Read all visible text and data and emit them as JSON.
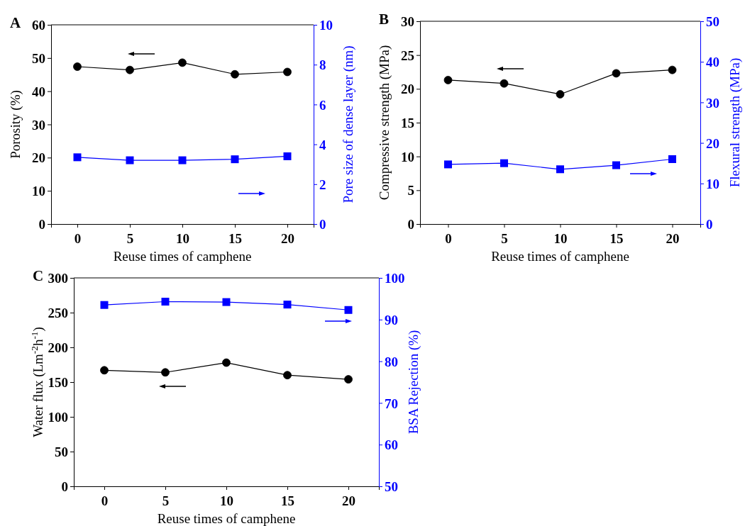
{
  "chart_data": [
    {
      "type": "line",
      "title": "A",
      "xlabel": "Reuse times of camphene",
      "ylabel": "Porosity (%)",
      "y2label": "Pore size of dense layer (nm)",
      "x": [
        0,
        5,
        10,
        15,
        20
      ],
      "xlim": [
        -2.5,
        22.5
      ],
      "xticks": [
        0,
        5,
        10,
        15,
        20
      ],
      "ylim": [
        0,
        60
      ],
      "yticks": [
        0,
        10,
        20,
        30,
        40,
        50,
        60
      ],
      "y2lim": [
        0,
        10
      ],
      "y2ticks": [
        0,
        2,
        4,
        6,
        8,
        10
      ],
      "series": [
        {
          "color": "#000000",
          "marker": "circle",
          "values": [
            47.4,
            46.4,
            48.6,
            45.1,
            45.8
          ]
        },
        {
          "color": "#0000ff",
          "marker": "square",
          "axis": "y2",
          "values": [
            3.35,
            3.2,
            3.2,
            3.25,
            3.4
          ]
        }
      ]
    },
    {
      "type": "line",
      "title": "B",
      "xlabel": "Reuse times of camphene",
      "ylabel": "Compressive strength (MPa)",
      "y2label": "Flexural strength (MPa)",
      "x": [
        0,
        5,
        10,
        15,
        20
      ],
      "xlim": [
        -2.5,
        22.5
      ],
      "xticks": [
        0,
        5,
        10,
        15,
        20
      ],
      "ylim": [
        0,
        30
      ],
      "yticks": [
        0,
        5,
        10,
        15,
        20,
        25,
        30
      ],
      "y2lim": [
        0,
        50
      ],
      "y2ticks": [
        0,
        10,
        20,
        30,
        40,
        50
      ],
      "series": [
        {
          "color": "#000000",
          "marker": "circle",
          "values": [
            21.3,
            20.8,
            19.2,
            22.3,
            22.8
          ]
        },
        {
          "color": "#0000ff",
          "marker": "square",
          "axis": "y2",
          "values": [
            14.7,
            15.0,
            13.5,
            14.5,
            16.0
          ]
        }
      ]
    },
    {
      "type": "line",
      "title": "C",
      "xlabel": "Reuse times of camphene",
      "ylabel": "Water flux (Lm$^{-2}$h$^{-1}$)",
      "y2label": "BSA Rejection (%)",
      "x": [
        0,
        5,
        10,
        15,
        20
      ],
      "xlim": [
        -2.5,
        22.5
      ],
      "xticks": [
        0,
        5,
        10,
        15,
        20
      ],
      "ylim": [
        0,
        300
      ],
      "yticks": [
        0,
        50,
        100,
        150,
        200,
        250,
        300
      ],
      "y2lim": [
        50,
        100
      ],
      "y2ticks": [
        50,
        60,
        70,
        80,
        90,
        100
      ],
      "series": [
        {
          "color": "#000000",
          "marker": "circle",
          "values": [
            167,
            164,
            178,
            160,
            154
          ]
        },
        {
          "color": "#0000ff",
          "marker": "square",
          "axis": "y2",
          "values": [
            93.5,
            94.3,
            94.2,
            93.6,
            92.3
          ]
        }
      ]
    }
  ]
}
